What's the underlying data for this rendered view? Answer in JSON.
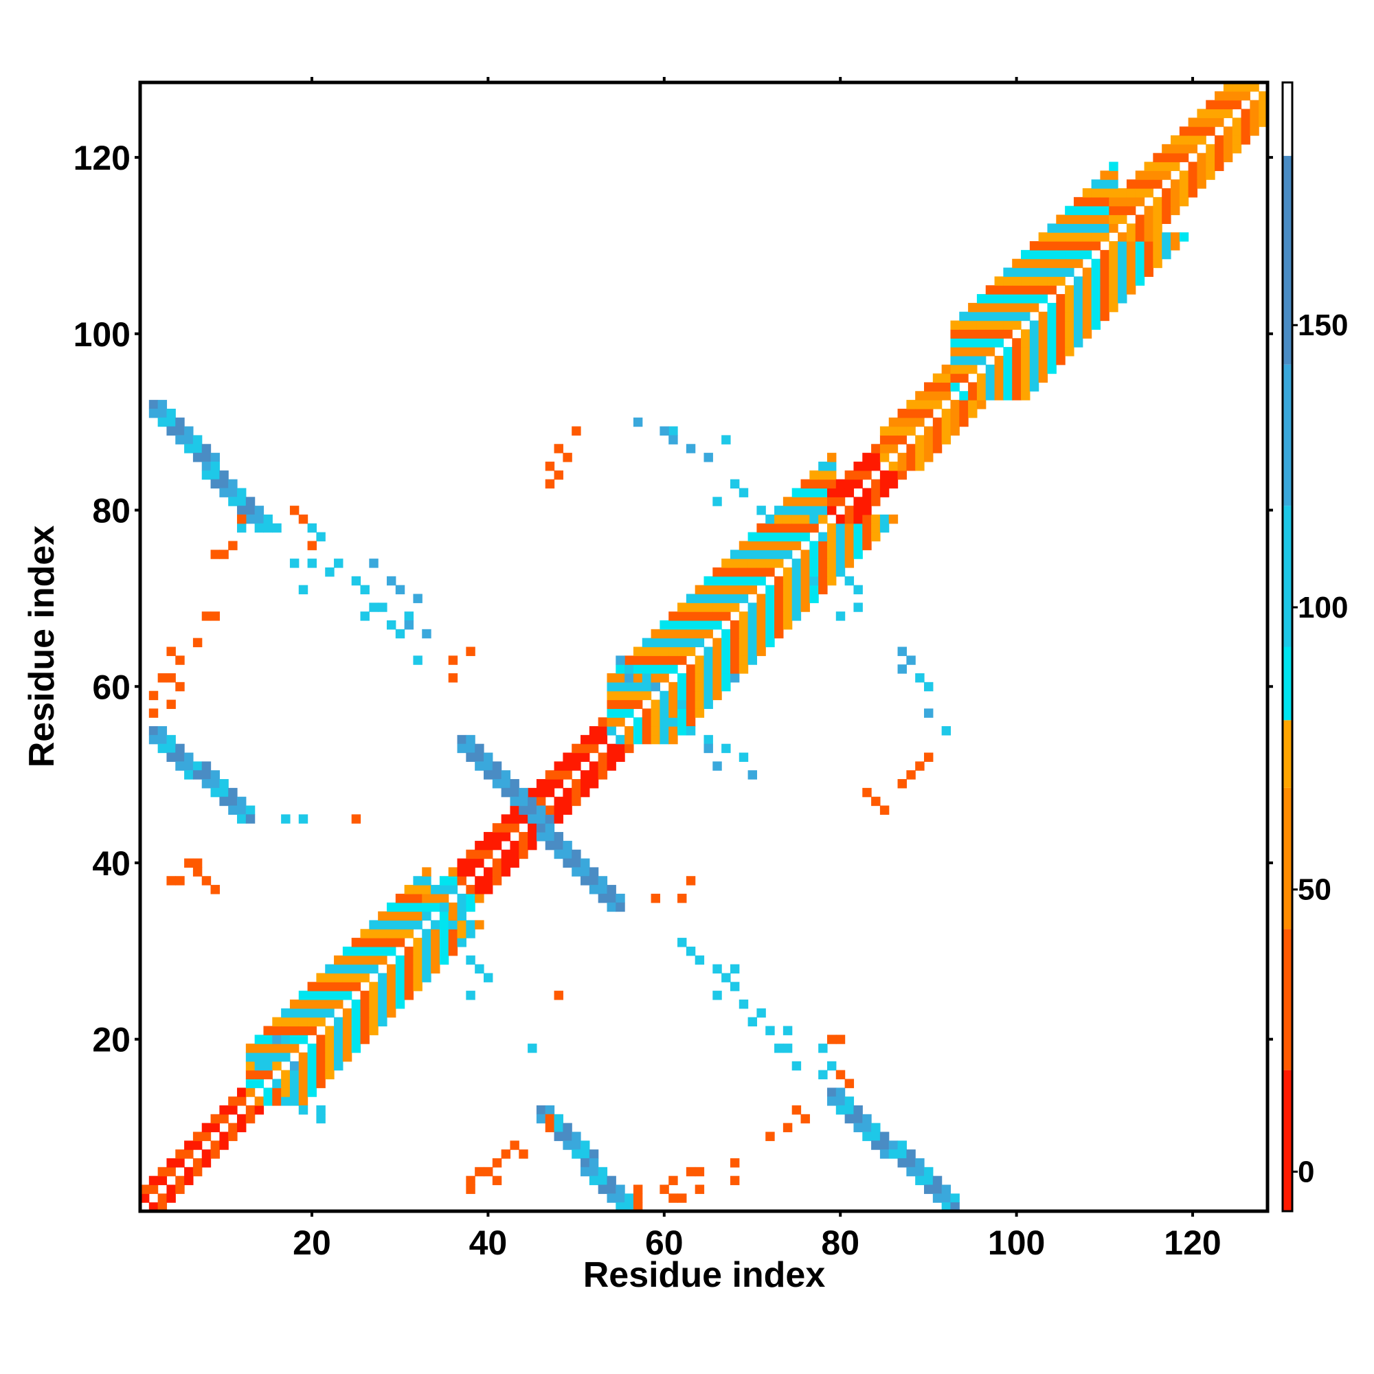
{
  "chart_data": {
    "type": "heatmap",
    "xlabel": "Residue index",
    "ylabel": "Residue index",
    "xlim": [
      1,
      128
    ],
    "ylim": [
      1,
      128
    ],
    "x_ticks": [
      20,
      40,
      60,
      80,
      100,
      120
    ],
    "y_ticks": [
      20,
      40,
      60,
      80,
      100,
      120
    ],
    "colorbar": {
      "ticks": [
        0,
        50,
        100,
        150
      ],
      "range": [
        -7,
        193
      ],
      "bands": [
        {
          "from": -7,
          "to": 18,
          "color": "#ff1a00"
        },
        {
          "from": 18,
          "to": 43,
          "color": "#ff5a00"
        },
        {
          "from": 43,
          "to": 68,
          "color": "#ff8c00"
        },
        {
          "from": 68,
          "to": 80,
          "color": "#ffa500"
        },
        {
          "from": 80,
          "to": 93,
          "color": "#00e5f0"
        },
        {
          "from": 93,
          "to": 118,
          "color": "#1ec8e8"
        },
        {
          "from": 118,
          "to": 143,
          "color": "#3aa8dc"
        },
        {
          "from": 143,
          "to": 180,
          "color": "#4a8cc4"
        },
        {
          "from": 180,
          "to": 193,
          "color": "#ffffff"
        }
      ]
    },
    "colors": {
      "red": "#ff1a00",
      "orange_red": "#ff5a00",
      "orange": "#ff8c00",
      "amber": "#ffa500",
      "cyan": "#00e5f0",
      "light_blue": "#1ec8e8",
      "mid_blue": "#3aa8dc",
      "steel_blue": "#4a8cc4"
    },
    "regions": [
      {
        "kind": "diagonal_band",
        "x_from": 1,
        "x_to": 13,
        "width": 2,
        "palette": [
          "red",
          "orange_red"
        ]
      },
      {
        "kind": "diagonal_band",
        "x_from": 13,
        "x_to": 33,
        "width": 6,
        "palette": [
          "orange",
          "cyan",
          "orange_red",
          "amber",
          "light_blue"
        ]
      },
      {
        "kind": "diagonal_band",
        "x_from": 33,
        "x_to": 37,
        "width": 3,
        "palette": [
          "light_blue",
          "cyan",
          "orange"
        ]
      },
      {
        "kind": "diagonal_band",
        "x_from": 37,
        "x_to": 54,
        "width": 3,
        "palette": [
          "red",
          "red",
          "orange_red"
        ]
      },
      {
        "kind": "diagonal_band",
        "x_from": 54,
        "x_to": 79,
        "width": 7,
        "palette": [
          "orange",
          "cyan",
          "orange_red",
          "amber",
          "light_blue"
        ]
      },
      {
        "kind": "diagonal_band",
        "x_from": 79,
        "x_to": 85,
        "width": 3,
        "palette": [
          "red",
          "red",
          "orange_red"
        ]
      },
      {
        "kind": "diagonal_band",
        "x_from": 85,
        "x_to": 93,
        "width": 4,
        "palette": [
          "orange",
          "orange_red",
          "amber"
        ]
      },
      {
        "kind": "diagonal_band",
        "x_from": 93,
        "x_to": 111,
        "width": 8,
        "palette": [
          "orange",
          "cyan",
          "orange_red",
          "amber",
          "light_blue"
        ]
      },
      {
        "kind": "diagonal_band",
        "x_from": 111,
        "x_to": 128,
        "width": 4,
        "palette": [
          "orange",
          "amber",
          "orange_red"
        ]
      },
      {
        "kind": "anti_band",
        "x_from": 2,
        "y_from": 92,
        "x_to": 14,
        "y_to": 79,
        "width": 2,
        "palette": [
          "steel_blue",
          "mid_blue",
          "light_blue"
        ]
      },
      {
        "kind": "anti_band",
        "x_from": 2,
        "y_from": 55,
        "x_to": 12,
        "y_to": 46,
        "width": 2,
        "palette": [
          "steel_blue",
          "mid_blue",
          "light_blue"
        ]
      },
      {
        "kind": "anti_band",
        "x_from": 37,
        "y_from": 54,
        "x_to": 46,
        "y_to": 45,
        "width": 2,
        "palette": [
          "steel_blue",
          "mid_blue"
        ]
      },
      {
        "kind": "anti_band",
        "x_from": 46,
        "y_from": 44,
        "x_to": 54,
        "y_to": 36,
        "width": 2,
        "palette": [
          "steel_blue",
          "mid_blue"
        ]
      },
      {
        "kind": "anti_band",
        "x_from": 46,
        "y_from": 12,
        "x_to": 56,
        "y_to": 1,
        "width": 2,
        "palette": [
          "steel_blue",
          "mid_blue",
          "light_blue"
        ]
      },
      {
        "kind": "anti_band",
        "x_from": 79,
        "y_from": 14,
        "x_to": 92,
        "y_to": 2,
        "width": 2,
        "palette": [
          "steel_blue",
          "mid_blue",
          "light_blue"
        ]
      },
      {
        "kind": "points",
        "color": "light_blue",
        "cells": [
          [
            16,
            20
          ],
          [
            17,
            20
          ],
          [
            14,
            17
          ],
          [
            15,
            17
          ],
          [
            16,
            15
          ],
          [
            17,
            13
          ],
          [
            19,
            12
          ],
          [
            21,
            12
          ],
          [
            21,
            11
          ],
          [
            37,
            31
          ],
          [
            38,
            29
          ],
          [
            39,
            28
          ],
          [
            40,
            27
          ],
          [
            38,
            25
          ],
          [
            45,
            19
          ],
          [
            35,
            35
          ],
          [
            36,
            33
          ],
          [
            70,
            22
          ],
          [
            72,
            21
          ],
          [
            73,
            19
          ],
          [
            74,
            21
          ],
          [
            74,
            19
          ],
          [
            75,
            17
          ],
          [
            78,
            19
          ],
          [
            79,
            17
          ],
          [
            78,
            16
          ],
          [
            62,
            31
          ],
          [
            63,
            30
          ],
          [
            64,
            29
          ],
          [
            66,
            28
          ],
          [
            67,
            27
          ],
          [
            68,
            26
          ],
          [
            69,
            24
          ],
          [
            71,
            23
          ],
          [
            66,
            25
          ],
          [
            68,
            28
          ],
          [
            12,
            78
          ],
          [
            15,
            78
          ],
          [
            16,
            78
          ],
          [
            20,
            78
          ],
          [
            21,
            77
          ],
          [
            20,
            74
          ],
          [
            22,
            73
          ],
          [
            23,
            74
          ],
          [
            25,
            72
          ],
          [
            26,
            71
          ],
          [
            27,
            69
          ],
          [
            28,
            69
          ],
          [
            29,
            67
          ],
          [
            30,
            66
          ],
          [
            31,
            68
          ],
          [
            26,
            68
          ],
          [
            32,
            63
          ],
          [
            19,
            71
          ],
          [
            18,
            74
          ],
          [
            66,
            81
          ],
          [
            68,
            83
          ],
          [
            69,
            82
          ],
          [
            71,
            80
          ],
          [
            72,
            79
          ],
          [
            77,
            79
          ],
          [
            78,
            77
          ],
          [
            80,
            75
          ],
          [
            81,
            72
          ],
          [
            82,
            71
          ],
          [
            82,
            69
          ],
          [
            80,
            68
          ],
          [
            77,
            72
          ],
          [
            61,
            89
          ],
          [
            67,
            88
          ],
          [
            56,
            62
          ],
          [
            58,
            61
          ],
          [
            60,
            59
          ],
          [
            62,
            58
          ],
          [
            61,
            56
          ],
          [
            63,
            55
          ],
          [
            65,
            54
          ],
          [
            67,
            53
          ],
          [
            69,
            52
          ],
          [
            89,
            61
          ],
          [
            90,
            60
          ],
          [
            92,
            55
          ],
          [
            19,
            45
          ],
          [
            17,
            45
          ]
        ]
      },
      {
        "kind": "points",
        "color": "mid_blue",
        "cells": [
          [
            16,
            20
          ],
          [
            18,
            17
          ],
          [
            57,
            90
          ],
          [
            60,
            89
          ],
          [
            61,
            88
          ],
          [
            63,
            87
          ],
          [
            65,
            86
          ],
          [
            65,
            53
          ],
          [
            66,
            51
          ],
          [
            70,
            50
          ],
          [
            68,
            61
          ],
          [
            87,
            64
          ],
          [
            88,
            63
          ],
          [
            87,
            62
          ],
          [
            90,
            57
          ],
          [
            27,
            74
          ],
          [
            29,
            72
          ],
          [
            30,
            71
          ],
          [
            32,
            70
          ],
          [
            31,
            67
          ],
          [
            33,
            66
          ],
          [
            55,
            63
          ],
          [
            56,
            61
          ],
          [
            59,
            60
          ]
        ]
      },
      {
        "kind": "points",
        "color": "orange_red",
        "cells": [
          [
            9,
            75
          ],
          [
            10,
            75
          ],
          [
            11,
            76
          ],
          [
            12,
            79
          ],
          [
            18,
            80
          ],
          [
            19,
            79
          ],
          [
            20,
            76
          ],
          [
            8,
            68
          ],
          [
            9,
            68
          ],
          [
            7,
            65
          ],
          [
            4,
            64
          ],
          [
            5,
            63
          ],
          [
            3,
            61
          ],
          [
            4,
            61
          ],
          [
            5,
            60
          ],
          [
            2,
            59
          ],
          [
            4,
            58
          ],
          [
            2,
            57
          ],
          [
            6,
            40
          ],
          [
            7,
            39
          ],
          [
            8,
            38
          ],
          [
            9,
            37
          ],
          [
            4,
            38
          ],
          [
            5,
            38
          ],
          [
            7,
            40
          ],
          [
            48,
            87
          ],
          [
            49,
            86
          ],
          [
            50,
            89
          ],
          [
            47,
            85
          ],
          [
            48,
            84
          ],
          [
            47,
            83
          ],
          [
            38,
            64
          ],
          [
            36,
            63
          ],
          [
            36,
            61
          ],
          [
            25,
            45
          ],
          [
            48,
            25
          ],
          [
            39,
            5
          ],
          [
            40,
            5
          ],
          [
            41,
            6
          ],
          [
            42,
            7
          ],
          [
            43,
            8
          ],
          [
            44,
            7
          ],
          [
            38,
            4
          ],
          [
            38,
            3
          ],
          [
            41,
            4
          ],
          [
            47,
            10
          ],
          [
            47,
            11
          ],
          [
            57,
            1
          ],
          [
            57,
            2
          ],
          [
            57,
            3
          ],
          [
            60,
            3
          ],
          [
            61,
            2
          ],
          [
            62,
            2
          ],
          [
            61,
            4
          ],
          [
            63,
            5
          ],
          [
            64,
            5
          ],
          [
            64,
            3
          ],
          [
            68,
            6
          ],
          [
            68,
            4
          ],
          [
            72,
            9
          ],
          [
            74,
            10
          ],
          [
            75,
            12
          ],
          [
            76,
            11
          ],
          [
            59,
            36
          ],
          [
            62,
            36
          ],
          [
            63,
            38
          ],
          [
            79,
            20
          ],
          [
            80,
            20
          ],
          [
            80,
            16
          ],
          [
            81,
            15
          ],
          [
            83,
            48
          ],
          [
            84,
            47
          ],
          [
            85,
            46
          ],
          [
            88,
            50
          ],
          [
            89,
            51
          ],
          [
            90,
            52
          ],
          [
            87,
            49
          ]
        ]
      }
    ]
  }
}
